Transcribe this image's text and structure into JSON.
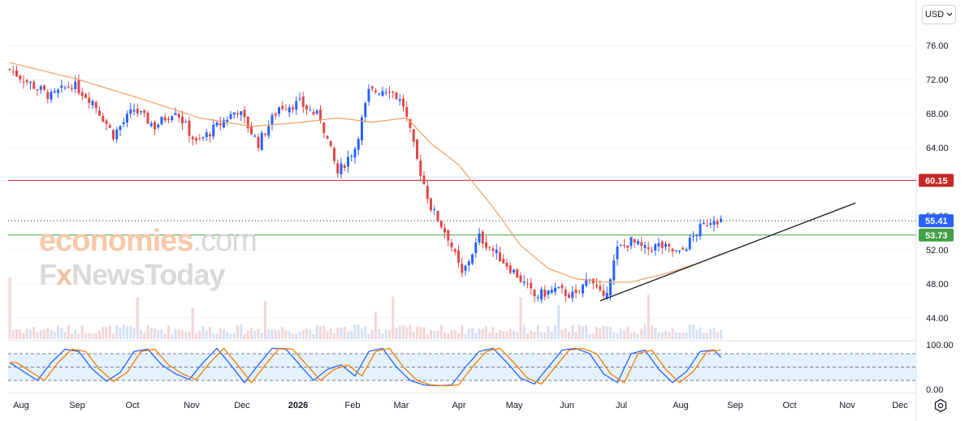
{
  "currency": {
    "label": "USD",
    "chevron_icon": "chevron-down-icon"
  },
  "watermark": {
    "line1_a": "economies",
    "line1_b": ".com",
    "line2_a": "F",
    "line2_x": "x",
    "line2_b": "NewsToday"
  },
  "colors": {
    "up": "#2962ff",
    "down": "#e04848",
    "ma": "#f0a060",
    "resistance": "#c62828",
    "support": "#43a047",
    "current_tag": "#2962ff",
    "stoch_k": "#2962ff",
    "stoch_d": "#f57c00",
    "stoch_band": "#e3f2fd"
  },
  "chart_data": {
    "type": "candlestick",
    "price_axis": {
      "ticks": [
        "76.00",
        "72.00",
        "68.00",
        "64.00",
        "56.00",
        "52.00",
        "48.00",
        "44.00"
      ],
      "ylim": [
        41.5,
        78.5
      ]
    },
    "stoch_axis": {
      "ticks": [
        "100.00",
        "0.00"
      ],
      "ylim": [
        0,
        100
      ],
      "upper_band": 80,
      "lower_band": 20
    },
    "time_axis": [
      "Aug",
      "Sep",
      "Oct",
      "Nov",
      "Dec",
      "2026",
      "Feb",
      "Mar",
      "Apr",
      "May",
      "Jun",
      "Jul",
      "Aug",
      "Sep",
      "Oct",
      "Nov",
      "Dec"
    ],
    "levels": {
      "resistance": {
        "value": 60.15,
        "label": "60.15"
      },
      "current": {
        "value": 55.41,
        "label": "55.41"
      },
      "support": {
        "value": 53.73,
        "label": "53.73"
      }
    },
    "trendline": {
      "from": {
        "bar": 171,
        "price": 46.0
      },
      "to": {
        "bar": 245,
        "price": 57.5
      }
    },
    "close_waypoints": [
      [
        0,
        73.2
      ],
      [
        6,
        71.5
      ],
      [
        12,
        70.0
      ],
      [
        18,
        71.5
      ],
      [
        24,
        69.5
      ],
      [
        30,
        65.5
      ],
      [
        36,
        68.5
      ],
      [
        42,
        66.5
      ],
      [
        48,
        68.5
      ],
      [
        54,
        64.5
      ],
      [
        60,
        66.5
      ],
      [
        66,
        68.5
      ],
      [
        72,
        64.5
      ],
      [
        78,
        68.8
      ],
      [
        84,
        69.2
      ],
      [
        90,
        67.5
      ],
      [
        95,
        61.0
      ],
      [
        100,
        64.0
      ],
      [
        104,
        70.5
      ],
      [
        110,
        71.0
      ],
      [
        114,
        69.0
      ],
      [
        118,
        62.5
      ],
      [
        122,
        57.0
      ],
      [
        127,
        53.5
      ],
      [
        131,
        49.0
      ],
      [
        136,
        53.5
      ],
      [
        141,
        51.5
      ],
      [
        147,
        49.0
      ],
      [
        152,
        46.5
      ],
      [
        158,
        47.3
      ],
      [
        164,
        46.5
      ],
      [
        168,
        49.0
      ],
      [
        172,
        46.0
      ],
      [
        176,
        52.0
      ],
      [
        180,
        53.0
      ],
      [
        184,
        52.0
      ],
      [
        188,
        52.5
      ],
      [
        194,
        51.5
      ],
      [
        200,
        54.5
      ],
      [
        204,
        55.8
      ],
      [
        206,
        55.4
      ]
    ],
    "ma_waypoints": [
      [
        0,
        74.0
      ],
      [
        20,
        72.0
      ],
      [
        40,
        69.5
      ],
      [
        55,
        67.5
      ],
      [
        70,
        66.5
      ],
      [
        85,
        67.0
      ],
      [
        95,
        67.5
      ],
      [
        105,
        67.0
      ],
      [
        115,
        67.5
      ],
      [
        122,
        64.5
      ],
      [
        130,
        62.0
      ],
      [
        140,
        57.0
      ],
      [
        148,
        52.5
      ],
      [
        156,
        49.8
      ],
      [
        164,
        48.6
      ],
      [
        172,
        48.2
      ],
      [
        180,
        48.2
      ],
      [
        190,
        49.2
      ],
      [
        200,
        50.5
      ],
      [
        206,
        51.5
      ]
    ],
    "stoch_waypoints": [
      [
        0,
        60
      ],
      [
        4,
        40
      ],
      [
        8,
        20
      ],
      [
        12,
        60
      ],
      [
        16,
        90
      ],
      [
        20,
        85
      ],
      [
        24,
        45
      ],
      [
        28,
        18
      ],
      [
        32,
        38
      ],
      [
        36,
        85
      ],
      [
        40,
        90
      ],
      [
        44,
        55
      ],
      [
        48,
        35
      ],
      [
        52,
        22
      ],
      [
        56,
        60
      ],
      [
        60,
        92
      ],
      [
        64,
        55
      ],
      [
        68,
        15
      ],
      [
        72,
        55
      ],
      [
        76,
        92
      ],
      [
        80,
        90
      ],
      [
        84,
        55
      ],
      [
        88,
        20
      ],
      [
        92,
        45
      ],
      [
        96,
        55
      ],
      [
        100,
        30
      ],
      [
        104,
        85
      ],
      [
        108,
        92
      ],
      [
        112,
        50
      ],
      [
        116,
        20
      ],
      [
        120,
        10
      ],
      [
        124,
        8
      ],
      [
        128,
        10
      ],
      [
        132,
        50
      ],
      [
        136,
        85
      ],
      [
        140,
        92
      ],
      [
        144,
        60
      ],
      [
        148,
        25
      ],
      [
        152,
        12
      ],
      [
        156,
        50
      ],
      [
        160,
        88
      ],
      [
        164,
        92
      ],
      [
        168,
        80
      ],
      [
        172,
        35
      ],
      [
        176,
        15
      ],
      [
        180,
        80
      ],
      [
        184,
        88
      ],
      [
        188,
        45
      ],
      [
        192,
        15
      ],
      [
        196,
        40
      ],
      [
        200,
        85
      ],
      [
        204,
        88
      ],
      [
        206,
        72
      ]
    ],
    "bar_count": 207
  }
}
